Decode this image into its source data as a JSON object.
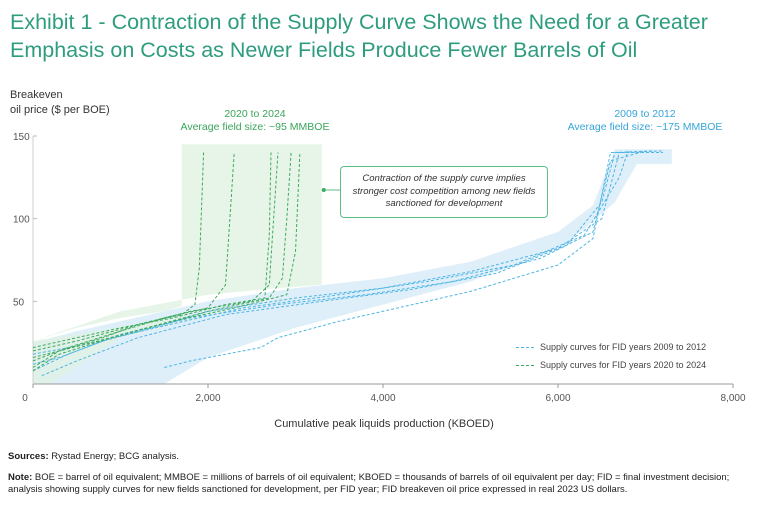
{
  "title": "Exhibit 1 - Contraction of the Supply Curve Shows the Need for a Greater Emphasis on Costs as Newer Fields Produce Fewer Barrels of Oil",
  "y_axis_label": "Breakeven\noil price ($ per BOE)",
  "x_axis_label": "Cumulative peak liquids production (KBOED)",
  "annotations": {
    "green_period": "2020 to 2024",
    "green_size": "Average field size: ~95 MMBOE",
    "blue_period": "2009 to 2012",
    "blue_size": "Average field size: ~175 MMBOE",
    "callout": "Contraction of the supply curve implies stronger cost competition among new fields sanctioned for development"
  },
  "legend": [
    {
      "label": "Supply curves for FID years 2009 to 2012",
      "color": "#4fb5e3"
    },
    {
      "label": "Supply curves for FID years 2020 to 2024",
      "color": "#3fa95e"
    }
  ],
  "sources_label": "Sources:",
  "sources_text": " Rystad Energy; BCG analysis.",
  "note_label": "Note:",
  "note_text": " BOE = barrel of oil equivalent; MMBOE = millions of barrels of oil equivalent; KBOED = thousands of barrels of oil equivalent per day; FID = final investment decision; analysis showing supply curves for new fields sanctioned for development, per FID year; FID breakeven oil price expressed in real 2023 US dollars.",
  "colors": {
    "green": "#3fa95e",
    "blue": "#4fb5e3",
    "green_band": "#dff1e2",
    "blue_band": "#dcedf9",
    "title": "#2e9c7e"
  },
  "chart_data": {
    "type": "line",
    "xlabel": "Cumulative peak liquids production (KBOED)",
    "ylabel": "Breakeven oil price ($ per BOE)",
    "xlim": [
      0,
      8000
    ],
    "ylim": [
      0,
      150
    ],
    "xticks": [
      0,
      2000,
      4000,
      6000,
      8000
    ],
    "xtick_labels": [
      "0",
      "2,000",
      "4,000",
      "6,000",
      "8,000"
    ],
    "yticks": [
      50,
      100,
      150
    ],
    "ytick_labels": [
      "50",
      "100",
      "150"
    ],
    "bands": [
      {
        "name": "2009 to 2012",
        "color": "#dcedf9",
        "upper": [
          [
            0,
            25
          ],
          [
            500,
            32
          ],
          [
            1000,
            38
          ],
          [
            2000,
            50
          ],
          [
            3000,
            58
          ],
          [
            4000,
            64
          ],
          [
            5000,
            74
          ],
          [
            6000,
            92
          ],
          [
            6400,
            108
          ],
          [
            6650,
            142
          ],
          [
            7300,
            142
          ]
        ],
        "lower": [
          [
            7300,
            133
          ],
          [
            6900,
            133
          ],
          [
            6650,
            110
          ],
          [
            6300,
            94
          ],
          [
            6000,
            82
          ],
          [
            5000,
            62
          ],
          [
            4000,
            48
          ],
          [
            3000,
            34
          ],
          [
            2000,
            16
          ],
          [
            1500,
            0
          ],
          [
            300,
            0
          ],
          [
            0,
            0
          ]
        ]
      },
      {
        "name": "2020 to 2024",
        "color": "#dff1e2",
        "upper": [
          [
            0,
            26
          ],
          [
            500,
            34
          ],
          [
            1000,
            40
          ],
          [
            1500,
            44
          ],
          [
            1700,
            47
          ],
          [
            1700,
            145
          ],
          [
            3300,
            145
          ],
          [
            3300,
            60
          ],
          [
            2800,
            58
          ],
          [
            2000,
            54
          ],
          [
            1000,
            44
          ],
          [
            0,
            26
          ]
        ],
        "lower": [
          [
            0,
            26
          ],
          [
            0,
            0
          ],
          [
            200,
            0
          ],
          [
            1000,
            28
          ],
          [
            2000,
            42
          ],
          [
            3000,
            52
          ],
          [
            3300,
            54
          ]
        ]
      }
    ],
    "series": [
      {
        "name": "Supply curves for FID years 2009 to 2012",
        "lines": [
          [
            [
              0,
              12
            ],
            [
              300,
              16
            ],
            [
              800,
              26
            ],
            [
              1500,
              36
            ],
            [
              2000,
              44
            ],
            [
              3000,
              52
            ],
            [
              4000,
              58
            ],
            [
              5000,
              68
            ],
            [
              6000,
              82
            ],
            [
              6500,
              100
            ],
            [
              6700,
              140
            ],
            [
              7200,
              141
            ]
          ],
          [
            [
              0,
              8
            ],
            [
              400,
              18
            ],
            [
              1000,
              30
            ],
            [
              1800,
              40
            ],
            [
              2800,
              48
            ],
            [
              3800,
              54
            ],
            [
              4800,
              62
            ],
            [
              5800,
              76
            ],
            [
              6400,
              92
            ],
            [
              6600,
              135
            ],
            [
              7000,
              141
            ]
          ],
          [
            [
              100,
              5
            ],
            [
              500,
              14
            ],
            [
              1200,
              28
            ],
            [
              2200,
              42
            ],
            [
              3300,
              50
            ],
            [
              4300,
              57
            ],
            [
              5300,
              67
            ],
            [
              6100,
              84
            ],
            [
              6500,
              110
            ],
            [
              6650,
              140
            ],
            [
              7100,
              141
            ]
          ],
          [
            [
              0,
              18
            ],
            [
              600,
              24
            ],
            [
              1400,
              34
            ],
            [
              2400,
              46
            ],
            [
              3500,
              54
            ],
            [
              4500,
              62
            ],
            [
              5500,
              72
            ],
            [
              6300,
              90
            ],
            [
              6700,
              125
            ],
            [
              6800,
              141
            ]
          ],
          [
            [
              1500,
              10
            ],
            [
              1800,
              14
            ],
            [
              2600,
              22
            ],
            [
              2800,
              28
            ],
            [
              3500,
              38
            ],
            [
              4000,
              44
            ],
            [
              5000,
              56
            ],
            [
              6000,
              72
            ],
            [
              6400,
              88
            ],
            [
              6600,
              140
            ],
            [
              7200,
              140
            ]
          ]
        ]
      },
      {
        "name": "Supply curves for FID years 2020 to 2024",
        "lines": [
          [
            [
              0,
              10
            ],
            [
              300,
              20
            ],
            [
              800,
              28
            ],
            [
              1200,
              36
            ],
            [
              1700,
              42
            ],
            [
              1850,
              48
            ],
            [
              1900,
              70
            ],
            [
              1950,
              140
            ]
          ],
          [
            [
              0,
              14
            ],
            [
              400,
              22
            ],
            [
              1000,
              32
            ],
            [
              1500,
              40
            ],
            [
              2000,
              46
            ],
            [
              2200,
              60
            ],
            [
              2250,
              100
            ],
            [
              2300,
              140
            ]
          ],
          [
            [
              0,
              20
            ],
            [
              500,
              26
            ],
            [
              1200,
              36
            ],
            [
              1800,
              44
            ],
            [
              2500,
              50
            ],
            [
              2700,
              60
            ],
            [
              2750,
              100
            ],
            [
              2800,
              140
            ]
          ],
          [
            [
              0,
              16
            ],
            [
              600,
              24
            ],
            [
              1300,
              34
            ],
            [
              2000,
              44
            ],
            [
              2700,
              52
            ],
            [
              2850,
              64
            ],
            [
              2900,
              100
            ],
            [
              2950,
              140
            ]
          ],
          [
            [
              0,
              8
            ],
            [
              300,
              18
            ],
            [
              900,
              28
            ],
            [
              1600,
              38
            ],
            [
              2300,
              46
            ],
            [
              2900,
              54
            ],
            [
              3000,
              80
            ],
            [
              3050,
              140
            ]
          ],
          [
            [
              0,
              22
            ],
            [
              500,
              28
            ],
            [
              1000,
              34
            ],
            [
              1600,
              40
            ],
            [
              2200,
              48
            ],
            [
              2650,
              52
            ],
            [
              2700,
              90
            ],
            [
              2720,
              140
            ]
          ]
        ]
      }
    ]
  }
}
